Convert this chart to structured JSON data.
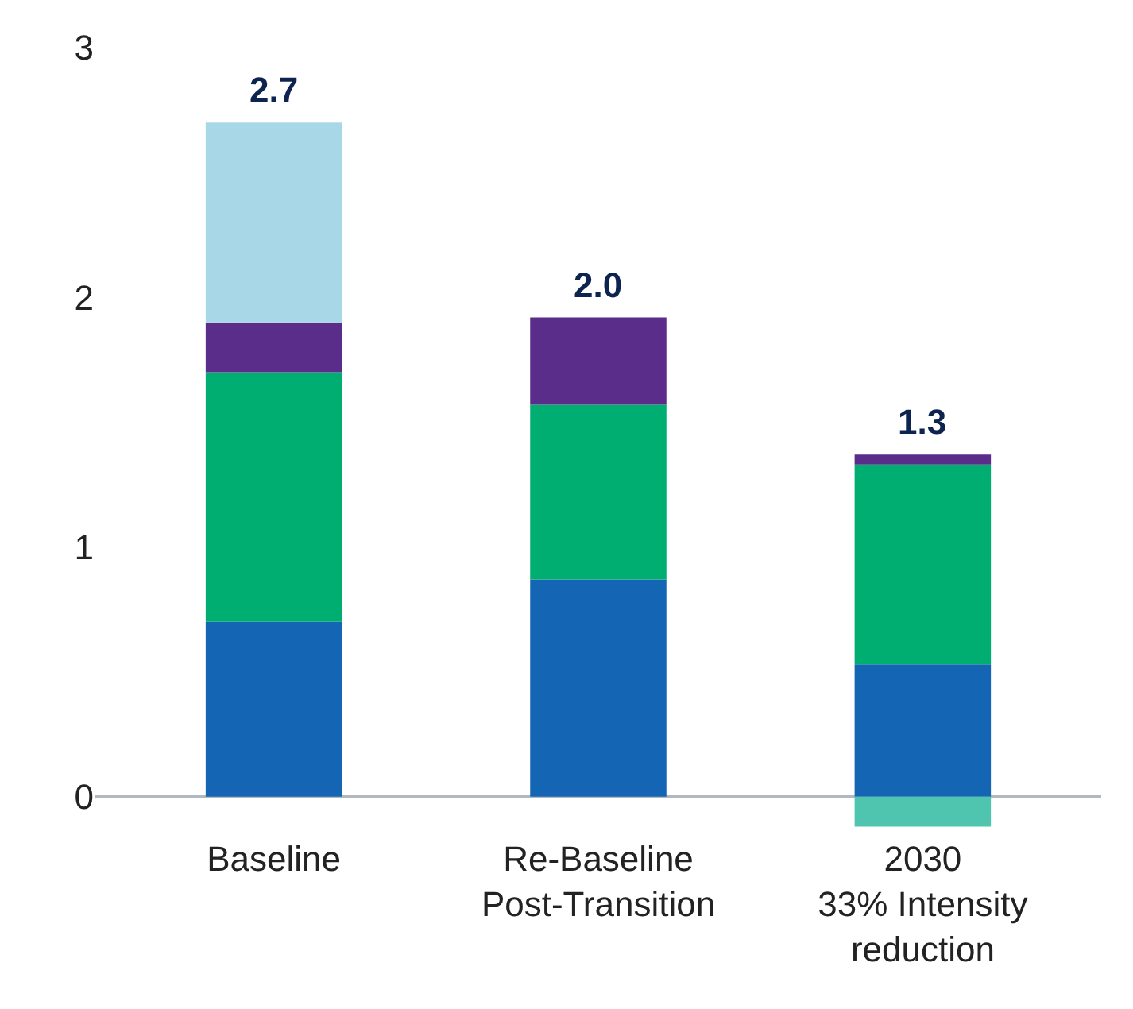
{
  "chart_data": {
    "type": "bar",
    "stacked": true,
    "categories": [
      "Baseline",
      "Re-Baseline\nPost-Transition",
      "2030\n33% Intensity\nreduction"
    ],
    "series": [
      {
        "color": "#1565b5",
        "values": [
          0.7,
          0.87,
          0.53
        ]
      },
      {
        "color": "#00ae72",
        "values": [
          1.0,
          0.7,
          0.8
        ]
      },
      {
        "color": "#5a2d8a",
        "values": [
          0.2,
          0.35,
          0.04
        ]
      },
      {
        "color": "#a8d8e8",
        "values": [
          0.8,
          null,
          null
        ]
      },
      {
        "color": "#4fc4ae",
        "values": [
          null,
          null,
          -0.12
        ]
      }
    ],
    "totals": [
      "2.7",
      "2.0",
      "1.3"
    ],
    "ylim": [
      -0.15,
      3
    ],
    "yticks": [
      0,
      1,
      2,
      3
    ]
  }
}
